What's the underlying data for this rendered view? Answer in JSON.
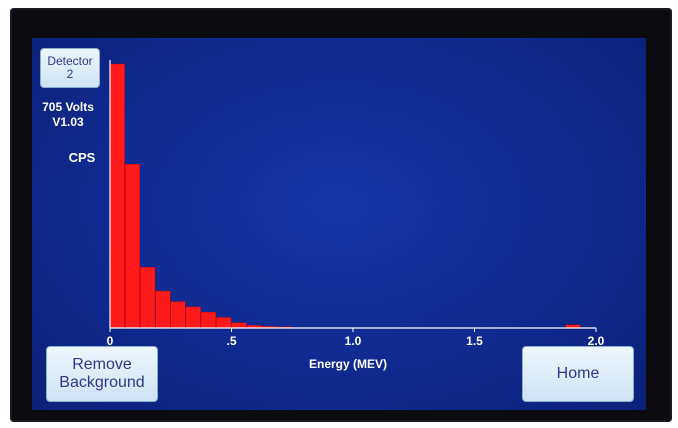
{
  "detector_button": {
    "line1": "Detector",
    "line2": "2"
  },
  "status": {
    "voltage": "705 Volts",
    "version": "V1.03",
    "y_unit": "CPS"
  },
  "buttons": {
    "remove_line1": "Remove",
    "remove_line2": "Background",
    "home": "Home"
  },
  "colors": {
    "screen": "#1236a0",
    "bars": "#ff1a1a",
    "axes": "#ffffff"
  },
  "chart_data": {
    "type": "bar",
    "xlabel": "Energy (MEV)",
    "ylabel": "CPS",
    "xlim": [
      0,
      2.0
    ],
    "ylim": [
      0,
      100
    ],
    "xticks": [
      {
        "value": 0,
        "label": "0"
      },
      {
        "value": 0.5,
        "label": ".5"
      },
      {
        "value": 1.0,
        "label": "1.0"
      },
      {
        "value": 1.5,
        "label": "1.5"
      },
      {
        "value": 2.0,
        "label": "2.0"
      }
    ],
    "bin_width": 0.0625,
    "bins": [
      {
        "x": 0.0,
        "value": 100
      },
      {
        "x": 0.0625,
        "value": 62
      },
      {
        "x": 0.125,
        "value": 23
      },
      {
        "x": 0.1875,
        "value": 14
      },
      {
        "x": 0.25,
        "value": 10
      },
      {
        "x": 0.3125,
        "value": 8
      },
      {
        "x": 0.375,
        "value": 6
      },
      {
        "x": 0.4375,
        "value": 4
      },
      {
        "x": 0.5,
        "value": 2
      },
      {
        "x": 0.5625,
        "value": 1
      },
      {
        "x": 0.625,
        "value": 0.6
      },
      {
        "x": 0.6875,
        "value": 0.4
      },
      {
        "x": 1.875,
        "value": 1.2
      }
    ]
  }
}
